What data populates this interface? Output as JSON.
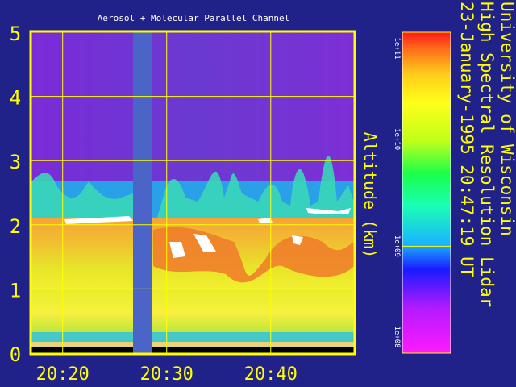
{
  "chart_data": {
    "type": "heatmap",
    "title": "Aerosol + Molecular Parallel Channel",
    "ylabel": "Altitude (km)",
    "xlabel": "",
    "ylim": [
      0,
      5
    ],
    "xlim": [
      "20:17",
      "20:48"
    ],
    "grid": true,
    "y_ticks": [
      {
        "label": "0",
        "value": 0
      },
      {
        "label": "1",
        "value": 1
      },
      {
        "label": "2",
        "value": 2
      },
      {
        "label": "3",
        "value": 3
      },
      {
        "label": "4",
        "value": 4
      },
      {
        "label": "5",
        "value": 5
      }
    ],
    "x_ticks": [
      {
        "label": "20:20",
        "value": 20.333
      },
      {
        "label": "20:30",
        "value": 20.5
      },
      {
        "label": "20:40",
        "value": 20.667
      }
    ],
    "no_data_interval": [
      "20:26.4",
      "20:28.4"
    ],
    "cloud_top_km_approx": 2.0,
    "colorbar": {
      "label": "",
      "scale": "log",
      "ticks": [
        "1e+11",
        "1e+10",
        "1e+09",
        "1e+08"
      ]
    },
    "side_text": [
      "University of Wisconsin",
      "High Spectral Resolution Lidar",
      "23-January-1995 20:47:19 UT"
    ]
  },
  "colors": {
    "background": "#21218a",
    "axes": "#ffff00",
    "title": "#ffffff",
    "side_text": "#ffff00",
    "no_data": "#4a64c8"
  }
}
